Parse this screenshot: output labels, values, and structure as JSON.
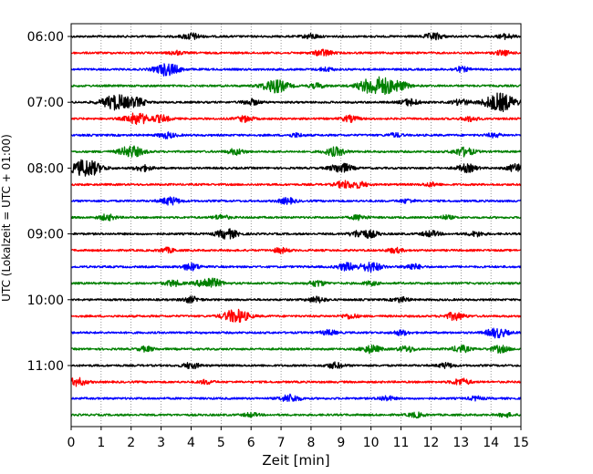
{
  "chart_data": {
    "type": "line",
    "xlabel": "Zeit  [min]",
    "ylabel": "UTC (Lokalzeit = UTC + 01:00)",
    "xlim": [
      0,
      15
    ],
    "x_ticks": [
      0,
      1,
      2,
      3,
      4,
      5,
      6,
      7,
      8,
      9,
      10,
      11,
      12,
      13,
      14,
      15
    ],
    "x_tick_labels": [
      "0",
      "1",
      "2",
      "3",
      "4",
      "5",
      "6",
      "7",
      "8",
      "9",
      "10",
      "11",
      "12",
      "13",
      "14",
      "15"
    ],
    "y_tick_labels": [
      {
        "label": "06:00",
        "row": 0
      },
      {
        "label": "07:00",
        "row": 4
      },
      {
        "label": "08:00",
        "row": 8
      },
      {
        "label": "09:00",
        "row": 12
      },
      {
        "label": "10:00",
        "row": 16
      },
      {
        "label": "11:00",
        "row": 20
      }
    ],
    "grid": "vertical dotted",
    "trace_colors": [
      "#000000",
      "#ff0000",
      "#0000ff",
      "#008000"
    ],
    "traces": [
      {
        "row": 0,
        "color": "#000000",
        "events": [
          [
            4.0,
            3.5
          ],
          [
            12.1,
            3.5
          ],
          [
            8.0,
            2.5
          ],
          [
            14.5,
            2.5
          ]
        ]
      },
      {
        "row": 1,
        "color": "#ff0000",
        "events": [
          [
            8.4,
            3.5
          ],
          [
            14.4,
            2.5
          ],
          [
            3.5,
            2.0
          ]
        ]
      },
      {
        "row": 2,
        "color": "#0000ff",
        "events": [
          [
            3.2,
            6.5
          ],
          [
            8.5,
            2.0
          ],
          [
            13.0,
            2.5
          ]
        ]
      },
      {
        "row": 3,
        "color": "#008000",
        "events": [
          [
            6.8,
            7.0
          ],
          [
            10.1,
            9.0
          ],
          [
            10.6,
            4.0
          ],
          [
            11.0,
            3.5
          ],
          [
            8.2,
            2.5
          ]
        ]
      },
      {
        "row": 4,
        "color": "#000000",
        "events": [
          [
            1.5,
            8.0
          ],
          [
            14.3,
            9.5
          ],
          [
            2.2,
            4.0
          ],
          [
            6.0,
            3.0
          ],
          [
            11.3,
            3.5
          ],
          [
            13.0,
            3.0
          ]
        ]
      },
      {
        "row": 5,
        "color": "#ff0000",
        "events": [
          [
            2.2,
            6.0
          ],
          [
            3.0,
            3.5
          ],
          [
            5.8,
            3.0
          ],
          [
            9.3,
            3.0
          ],
          [
            13.3,
            2.5
          ]
        ]
      },
      {
        "row": 6,
        "color": "#0000ff",
        "events": [
          [
            3.2,
            3.0
          ],
          [
            7.5,
            2.0
          ],
          [
            10.8,
            2.0
          ],
          [
            14.1,
            2.0
          ]
        ]
      },
      {
        "row": 7,
        "color": "#008000",
        "events": [
          [
            2.0,
            6.0
          ],
          [
            5.5,
            3.0
          ],
          [
            8.8,
            4.5
          ],
          [
            13.1,
            4.5
          ]
        ]
      },
      {
        "row": 8,
        "color": "#000000",
        "events": [
          [
            0.5,
            9.0
          ],
          [
            2.4,
            3.0
          ],
          [
            9.0,
            5.0
          ],
          [
            13.2,
            4.0
          ],
          [
            14.9,
            4.5
          ]
        ]
      },
      {
        "row": 9,
        "color": "#ff0000",
        "events": [
          [
            9.1,
            3.5
          ],
          [
            9.6,
            3.0
          ],
          [
            12.0,
            2.0
          ]
        ]
      },
      {
        "row": 10,
        "color": "#0000ff",
        "events": [
          [
            3.3,
            4.0
          ],
          [
            7.2,
            3.0
          ],
          [
            11.2,
            2.0
          ]
        ]
      },
      {
        "row": 11,
        "color": "#008000",
        "events": [
          [
            1.2,
            3.0
          ],
          [
            5.0,
            2.5
          ],
          [
            9.6,
            2.5
          ],
          [
            12.5,
            2.0
          ]
        ]
      },
      {
        "row": 12,
        "color": "#000000",
        "events": [
          [
            5.2,
            5.0
          ],
          [
            9.6,
            3.5
          ],
          [
            10.0,
            3.0
          ],
          [
            12.0,
            3.0
          ],
          [
            13.5,
            2.5
          ]
        ]
      },
      {
        "row": 13,
        "color": "#ff0000",
        "events": [
          [
            3.2,
            2.5
          ],
          [
            7.0,
            2.5
          ],
          [
            10.8,
            2.5
          ]
        ]
      },
      {
        "row": 14,
        "color": "#0000ff",
        "events": [
          [
            4.0,
            3.5
          ],
          [
            9.2,
            4.0
          ],
          [
            10.0,
            5.0
          ],
          [
            11.4,
            3.0
          ]
        ]
      },
      {
        "row": 15,
        "color": "#008000",
        "events": [
          [
            4.6,
            6.0
          ],
          [
            3.4,
            3.0
          ],
          [
            8.2,
            3.0
          ],
          [
            10.0,
            2.0
          ]
        ]
      },
      {
        "row": 16,
        "color": "#000000",
        "events": [
          [
            4.0,
            3.0
          ],
          [
            8.2,
            3.0
          ],
          [
            11.0,
            2.5
          ]
        ]
      },
      {
        "row": 17,
        "color": "#ff0000",
        "events": [
          [
            5.5,
            7.0
          ],
          [
            12.8,
            4.0
          ],
          [
            9.3,
            2.5
          ]
        ]
      },
      {
        "row": 18,
        "color": "#0000ff",
        "events": [
          [
            14.2,
            5.0
          ],
          [
            8.6,
            2.5
          ],
          [
            11.0,
            2.5
          ]
        ]
      },
      {
        "row": 19,
        "color": "#008000",
        "events": [
          [
            10.0,
            4.0
          ],
          [
            11.2,
            3.0
          ],
          [
            13.0,
            3.5
          ],
          [
            14.3,
            3.5
          ],
          [
            2.5,
            2.5
          ]
        ]
      },
      {
        "row": 20,
        "color": "#000000",
        "events": [
          [
            4.0,
            3.0
          ],
          [
            8.8,
            3.0
          ],
          [
            12.5,
            2.5
          ]
        ]
      },
      {
        "row": 21,
        "color": "#ff0000",
        "events": [
          [
            0.2,
            4.0
          ],
          [
            13.0,
            3.5
          ],
          [
            4.5,
            2.0
          ]
        ]
      },
      {
        "row": 22,
        "color": "#0000ff",
        "events": [
          [
            7.3,
            4.0
          ],
          [
            10.5,
            2.5
          ],
          [
            13.5,
            2.0
          ]
        ]
      },
      {
        "row": 23,
        "color": "#008000",
        "events": [
          [
            11.5,
            2.5
          ],
          [
            14.5,
            2.0
          ],
          [
            6.0,
            2.0
          ]
        ]
      }
    ]
  }
}
